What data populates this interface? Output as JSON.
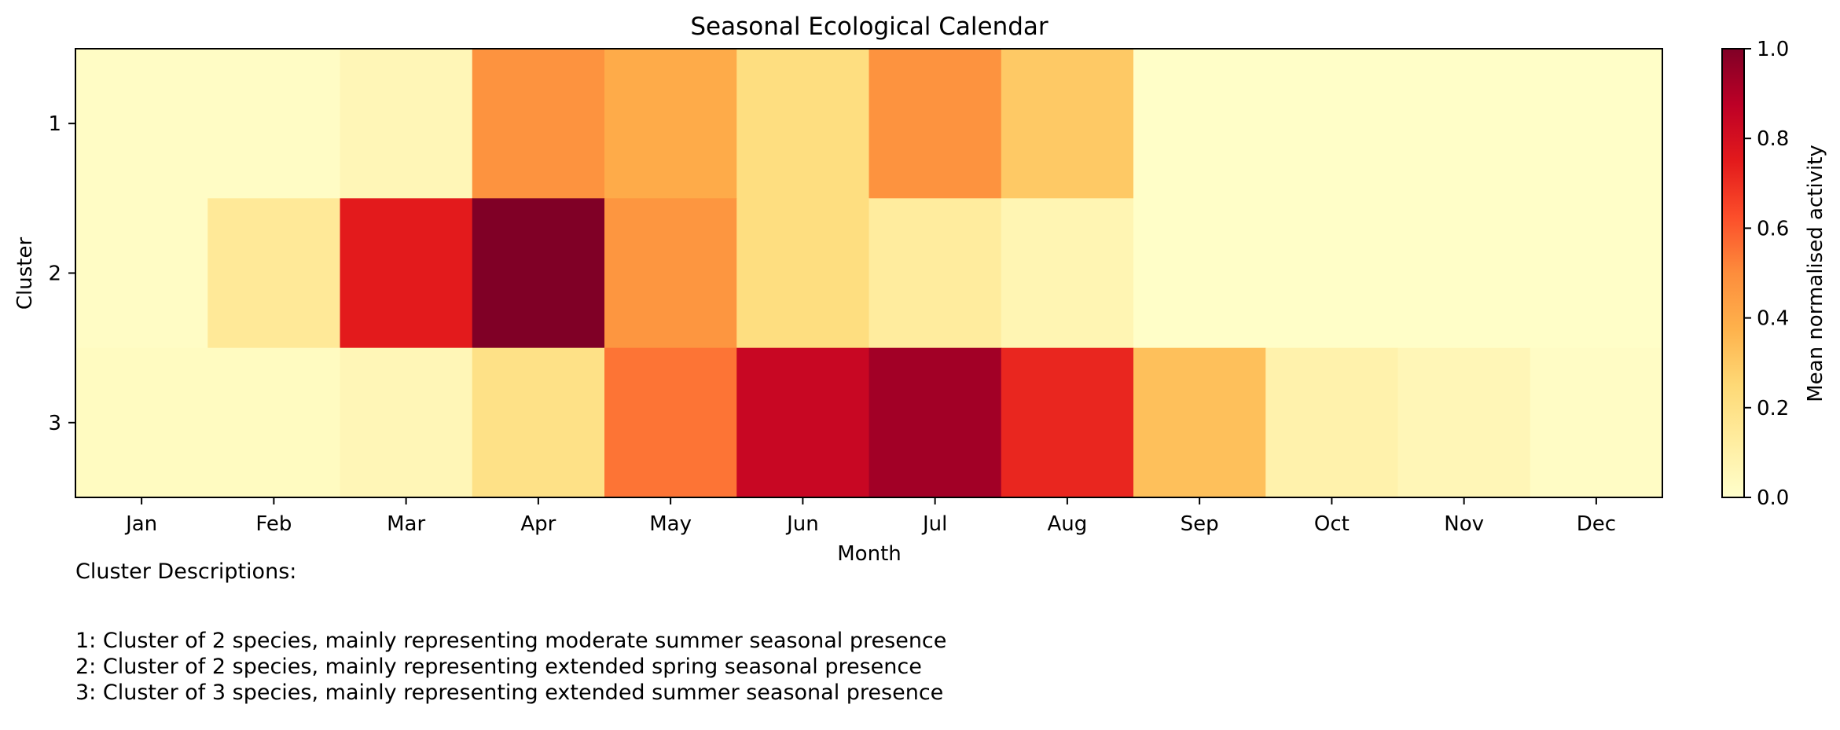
{
  "chart_data": {
    "type": "heatmap",
    "title": "Seasonal Ecological Calendar",
    "xlabel": "Month",
    "ylabel": "Cluster",
    "x_categories": [
      "Jan",
      "Feb",
      "Mar",
      "Apr",
      "May",
      "Jun",
      "Jul",
      "Aug",
      "Sep",
      "Oct",
      "Nov",
      "Dec"
    ],
    "y_categories": [
      "1",
      "2",
      "3"
    ],
    "values": [
      [
        0.02,
        0.02,
        0.06,
        0.48,
        0.4,
        0.22,
        0.48,
        0.3,
        0.01,
        0.01,
        0.01,
        0.01
      ],
      [
        0.02,
        0.15,
        0.75,
        1.0,
        0.47,
        0.22,
        0.13,
        0.07,
        0.01,
        0.01,
        0.01,
        0.01
      ],
      [
        0.03,
        0.03,
        0.06,
        0.2,
        0.55,
        0.84,
        0.93,
        0.72,
        0.33,
        0.09,
        0.06,
        0.02
      ]
    ],
    "colorbar": {
      "label": "Mean normalised activity",
      "range": [
        0.0,
        1.0
      ],
      "ticks": [
        "0.0",
        "0.2",
        "0.4",
        "0.6",
        "0.8",
        "1.0"
      ],
      "colormap": "YlOrRd"
    }
  },
  "descriptions": {
    "header": "Cluster Descriptions:",
    "lines": [
      "1: Cluster of 2 species, mainly representing moderate summer seasonal presence",
      "2: Cluster of 2 species, mainly representing extended spring seasonal presence",
      "3: Cluster of 3 species, mainly representing extended summer seasonal presence"
    ]
  }
}
